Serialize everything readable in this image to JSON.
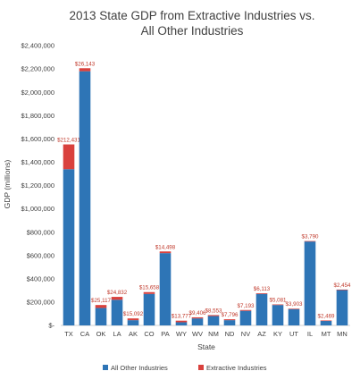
{
  "chart_data": {
    "type": "bar",
    "stacked": true,
    "title": [
      "2013 State GDP from Extractive Industries vs.",
      "All Other Industries"
    ],
    "xlabel": "State",
    "ylabel": "GDP (millions)",
    "ylim": [
      0,
      2400000
    ],
    "yticks": [
      0,
      200000,
      400000,
      600000,
      800000,
      1000000,
      1200000,
      1400000,
      1600000,
      1800000,
      2000000,
      2200000,
      2400000
    ],
    "ytick_labels": [
      "$-",
      "$200,000",
      "$400,000",
      "$600,000",
      "$800,000",
      "$1,000,000",
      "$1,200,000",
      "$1,400,000",
      "$1,600,000",
      "$1,800,000",
      "$2,000,000",
      "$2,200,000",
      "$2,400,000"
    ],
    "categories": [
      "TX",
      "CA",
      "OK",
      "LA",
      "AK",
      "CO",
      "PA",
      "WY",
      "WV",
      "NM",
      "ND",
      "NV",
      "AZ",
      "KY",
      "UT",
      "IL",
      "MT",
      "MN"
    ],
    "series": [
      {
        "name": "All Other Industries",
        "color": "#2e75b6",
        "values": [
          1340000,
          2180000,
          150000,
          220000,
          45000,
          270000,
          620000,
          27000,
          60000,
          80000,
          45000,
          125000,
          270000,
          175000,
          140000,
          720000,
          40000,
          305000
        ]
      },
      {
        "name": "Extractive Industries",
        "color": "#d9413d",
        "values": [
          212431,
          26143,
          25117,
          24832,
          15092,
          15658,
          14498,
          13777,
          9406,
          8553,
          7796,
          7193,
          6113,
          5081,
          3903,
          3790,
          2469,
          2454
        ]
      }
    ],
    "data_labels": [
      "$212,431",
      "$26,143",
      "$25,117",
      "$24,832",
      "$15,092",
      "$15,658",
      "$14,498",
      "$13,777",
      "$9,406",
      "$8,553",
      "$7,796",
      "$7,193",
      "$6,113",
      "$5,081",
      "$3,903",
      "$3,790",
      "$2,469",
      "$2,454"
    ],
    "grid": false,
    "legend": "bottom"
  }
}
